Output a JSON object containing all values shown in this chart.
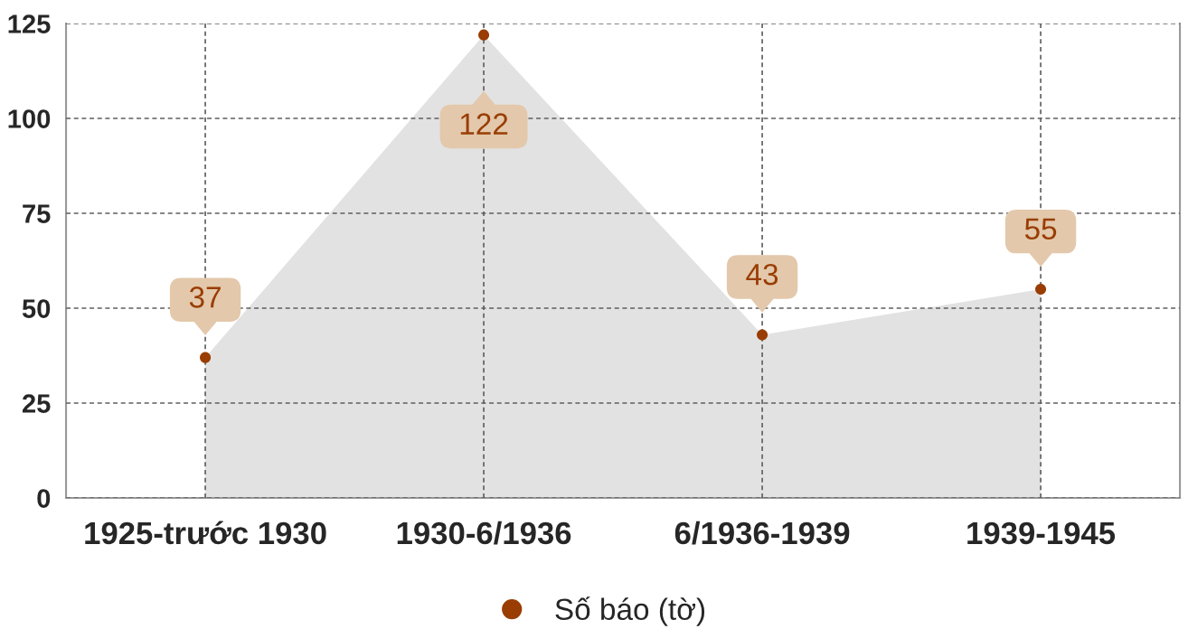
{
  "chart_data": {
    "type": "area",
    "categories": [
      "1925-trước 1930",
      "1930-6/1936",
      "6/1936-1939",
      "1939-1945"
    ],
    "series": [
      {
        "color": "#e2e2e2",
        "values": [
          37,
          122,
          43,
          55
        ]
      },
      {
        "type": "scatter",
        "name": "Số báo (tờ)",
        "color": "#993d03",
        "marker": "circle",
        "values": [
          37,
          122,
          43,
          55
        ],
        "value_labels": [
          "37",
          "122",
          "43",
          "55"
        ]
      }
    ],
    "ylim": [
      0,
      125
    ],
    "yticks": [
      0,
      25,
      50,
      75,
      100,
      125
    ],
    "grid": true,
    "legend": "bottom"
  }
}
